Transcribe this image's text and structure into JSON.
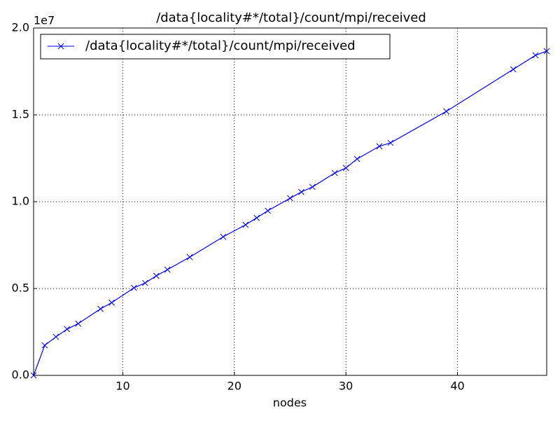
{
  "chart_data": {
    "type": "line",
    "title": "/data{locality#*/total}/count/mpi/received",
    "x_label": "nodes",
    "y_offset_label": "1e7",
    "x": [
      2,
      3,
      4,
      5,
      6,
      8,
      9,
      11,
      12,
      13,
      14,
      16,
      19,
      21,
      22,
      23,
      25,
      26,
      27,
      29,
      30,
      31,
      33,
      34,
      39,
      45,
      47,
      48
    ],
    "series": [
      {
        "name": "/data{locality#*/total}/count/mpi/received",
        "color": "#0000ff",
        "values": [
          0,
          1730000,
          2220000,
          2660000,
          2980000,
          3830000,
          4190000,
          5040000,
          5320000,
          5730000,
          6090000,
          6810000,
          7980000,
          8670000,
          9070000,
          9480000,
          10200000,
          10560000,
          10850000,
          11650000,
          11940000,
          12460000,
          13190000,
          13390000,
          15200000,
          17620000,
          18430000,
          18670000
        ]
      }
    ],
    "xlim": [
      2,
      48
    ],
    "xticks": [
      10,
      20,
      30,
      40
    ],
    "ylim": [
      0,
      20000000
    ],
    "yticks": [
      {
        "value": 0,
        "label": "0.0"
      },
      {
        "value": 5000000,
        "label": "0.5"
      },
      {
        "value": 10000000,
        "label": "1.0"
      },
      {
        "value": 15000000,
        "label": "1.5"
      },
      {
        "value": 20000000,
        "label": "2.0"
      }
    ],
    "grid": true,
    "legend": "upper left"
  }
}
